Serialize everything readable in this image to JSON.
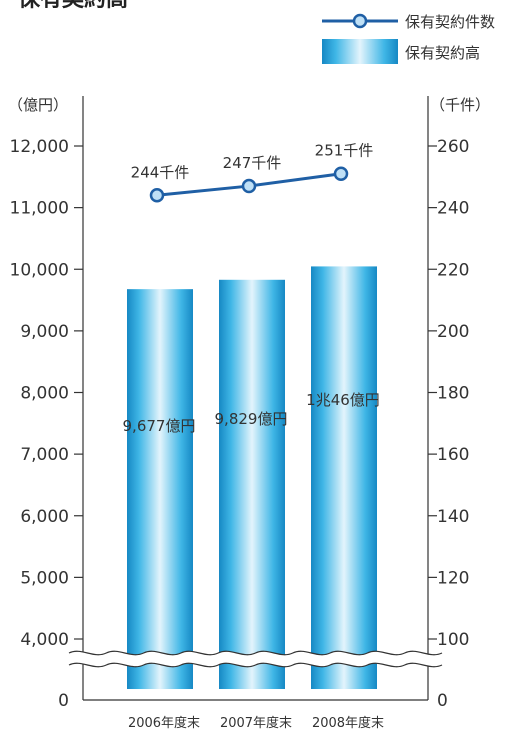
{
  "title_fragment": "保有契約高",
  "legend": {
    "line_label": "保有契約件数",
    "bar_label": "保有契約高"
  },
  "colors": {
    "bar_light": "#e3f4fc",
    "bar_mid": "#3fb6e6",
    "bar_dark": "#1688c4",
    "line": "#1f5fa5",
    "marker_fill": "#bfe0f6",
    "axis": "#333333"
  },
  "chart_data": {
    "type": "bar+line",
    "categories": [
      "2006年度末",
      "2007年度末",
      "2008年度末"
    ],
    "y_left": {
      "unit_label": "（億円）",
      "ticks": [
        "0",
        "4,000",
        "5,000",
        "6,000",
        "7,000",
        "8,000",
        "9,000",
        "10,000",
        "11,000",
        "12,000"
      ],
      "range": [
        4000,
        12000
      ],
      "axis_break": true
    },
    "y_right": {
      "unit_label": "（千件）",
      "ticks": [
        "0",
        "100",
        "120",
        "140",
        "160",
        "180",
        "200",
        "220",
        "240",
        "260"
      ],
      "range": [
        100,
        260
      ],
      "axis_break": true
    },
    "bars": {
      "name": "保有契約高",
      "values": [
        9677,
        9829,
        10046
      ],
      "labels": [
        "9,677億円",
        "9,829億円",
        "1兆46億円"
      ]
    },
    "line": {
      "name": "保有契約件数",
      "values": [
        244,
        247,
        251
      ],
      "labels": [
        "244千件",
        "247千件",
        "251千件"
      ]
    }
  }
}
